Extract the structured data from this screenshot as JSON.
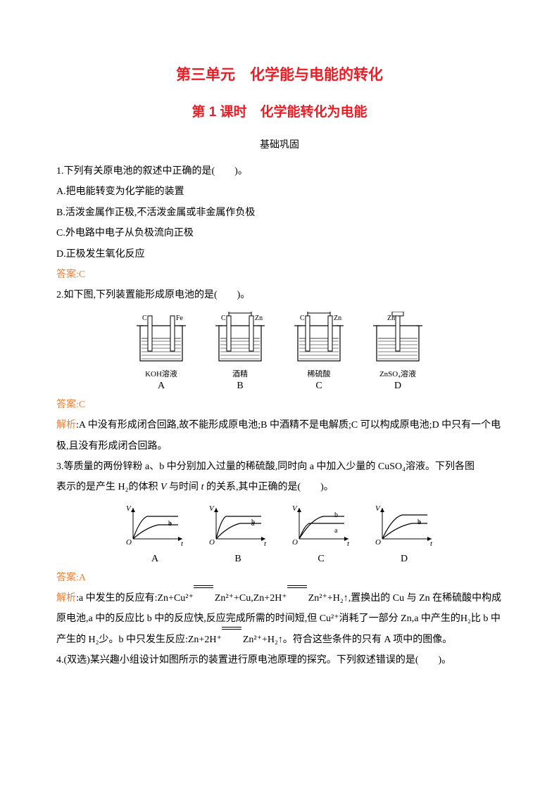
{
  "title1": "第三单元　化学能与电能的转化",
  "title2": "第 1 课时　化学能转化为电能",
  "subtitle": "基础巩固",
  "q1": {
    "stem": "1.下列有关原电池的叙述中正确的是(　　)。",
    "optA": "A.把电能转变为化学能的装置",
    "optB": "B.活泼金属作正极,不活泼金属或非金属作负极",
    "optC": "C.外电路中电子从负极流向正极",
    "optD": "D.正极发生氧化反应",
    "answer": "答案:C"
  },
  "q2": {
    "stem": "2.如下图,下列装置能形成原电池的是(　　)。",
    "beakers": [
      {
        "left_el": "C",
        "right_el": "Fe",
        "has_bridge": false,
        "solution": "KOH溶液",
        "letter": "A"
      },
      {
        "left_el": "C",
        "right_el": "Zn",
        "has_bridge": true,
        "solution": "酒精",
        "letter": "B"
      },
      {
        "left_el": "C",
        "right_el": "Zn",
        "has_bridge": true,
        "solution": "稀硫酸",
        "letter": "C"
      },
      {
        "left_el": "Zn",
        "right_el": "",
        "has_bridge": true,
        "single": true,
        "solution": "ZnSO₄溶液",
        "letter": "D"
      }
    ],
    "answer": "答案:C",
    "analysis": "解析:A 中没有形成闭合回路,故不能形成原电池;B 中酒精不是电解质;C 可以构成原电池;D 中只有一个电极,且没有形成闭合回路。"
  },
  "q3": {
    "stem_p1": "3.等质量的两份锌粉 a、b 中分别加入过量的稀硫酸,同时向 a 中加入少量的 CuSO₄溶液。下列各图",
    "stem_p2_pre": "表示的是产生 H₂的体积 ",
    "stem_p2_v": "V",
    "stem_p2_mid": " 与时间 ",
    "stem_p2_t": "t",
    "stem_p2_post": " 的关系,其中正确的是(　　)。",
    "charts": [
      {
        "letter": "A",
        "b_above": true,
        "b_faster": false
      },
      {
        "letter": "B",
        "b_above": true,
        "b_faster": true
      },
      {
        "letter": "C",
        "b_above": false,
        "b_faster": true
      },
      {
        "letter": "D",
        "b_above": true,
        "b_faster": false,
        "variant": "d"
      }
    ],
    "answer": "答案:A",
    "analysis_pre": "解析:a 中发生的反应有:Zn+Cu²⁺",
    "analysis_mid1": "Zn²⁺+Cu,Zn+2H⁺",
    "analysis_mid2": "Zn²⁺+H₂↑,置换出的 Cu 与 Zn 在稀硫酸中构成原电池,a 中的反应比 b 中的反应快,反应完成所需的时间短,但 Cu²⁺消耗了一部分 Zn,a 中产生的H₂比 b 中产生的 H₂少。b 中只发生反应:Zn+2H⁺",
    "analysis_post": "Zn²⁺+H₂↑。符合这些条件的只有 A 项中的图像。"
  },
  "q4": {
    "stem": "4.(双选)某兴趣小组设计如图所示的装置进行原电池原理的探究。下列叙述错误的是(　　)。"
  },
  "colors": {
    "accent": "#ed1c24",
    "answer_color": "#ed7d31",
    "text": "#000000",
    "background": "#ffffff"
  }
}
